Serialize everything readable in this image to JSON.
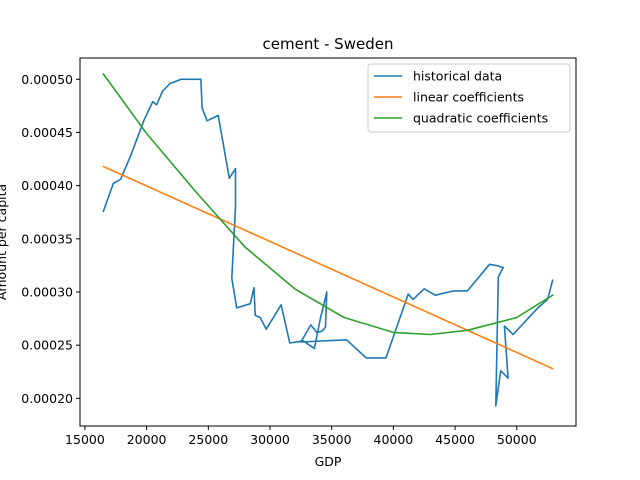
{
  "chart_data": {
    "type": "line",
    "title": "cement - Sweden",
    "xlabel": "GDP",
    "ylabel": "Amount per capita",
    "xlim": [
      14600,
      54800
    ],
    "ylim": [
      0.000174,
      0.00052
    ],
    "xticks": [
      15000,
      20000,
      25000,
      30000,
      35000,
      40000,
      45000,
      50000
    ],
    "yticks": [
      0.0002,
      0.00025,
      0.0003,
      0.00035,
      0.0004,
      0.00045,
      0.0005
    ],
    "xtick_labels": [
      "15000",
      "20000",
      "25000",
      "30000",
      "35000",
      "40000",
      "45000",
      "50000"
    ],
    "ytick_labels": [
      "0.00020",
      "0.00025",
      "0.00030",
      "0.00035",
      "0.00040",
      "0.00045",
      "0.00050"
    ],
    "legend_position": "top-right",
    "series": [
      {
        "name": "historical data",
        "color": "#1f77b4",
        "points": [
          [
            16500,
            0.000376
          ],
          [
            17300,
            0.000402
          ],
          [
            17900,
            0.000406
          ],
          [
            18700,
            0.000428
          ],
          [
            19800,
            0.000462
          ],
          [
            20500,
            0.000479
          ],
          [
            20800,
            0.000476
          ],
          [
            21300,
            0.000489
          ],
          [
            21900,
            0.000496
          ],
          [
            22800,
            0.0005
          ],
          [
            24400,
            0.0005
          ],
          [
            24500,
            0.000473
          ],
          [
            24900,
            0.000461
          ],
          [
            25800,
            0.000466
          ],
          [
            26700,
            0.000407
          ],
          [
            27200,
            0.000416
          ],
          [
            27200,
            0.00038
          ],
          [
            26900,
            0.000313
          ],
          [
            27300,
            0.000285
          ],
          [
            28400,
            0.000289
          ],
          [
            28700,
            0.000304
          ],
          [
            28800,
            0.000278
          ],
          [
            29200,
            0.000276
          ],
          [
            29700,
            0.000265
          ],
          [
            30900,
            0.000288
          ],
          [
            31600,
            0.000252
          ],
          [
            32700,
            0.000254
          ],
          [
            33600,
            0.000247
          ],
          [
            34100,
            0.000276
          ],
          [
            34600,
            0.0003
          ],
          [
            34500,
            0.000267
          ],
          [
            34200,
            0.000263
          ],
          [
            33800,
            0.000262
          ],
          [
            33300,
            0.000269
          ],
          [
            32500,
            0.000253
          ],
          [
            36200,
            0.000255
          ],
          [
            37800,
            0.000238
          ],
          [
            39400,
            0.000238
          ],
          [
            41200,
            0.000298
          ],
          [
            41600,
            0.000293
          ],
          [
            42500,
            0.000303
          ],
          [
            43400,
            0.000297
          ],
          [
            44900,
            0.000301
          ],
          [
            46000,
            0.000301
          ],
          [
            47800,
            0.000326
          ],
          [
            48300,
            0.000325
          ],
          [
            48900,
            0.000323
          ],
          [
            48500,
            0.000314
          ],
          [
            48300,
            0.000193
          ],
          [
            48700,
            0.000226
          ],
          [
            49300,
            0.000219
          ],
          [
            49000,
            0.000268
          ],
          [
            49700,
            0.00026
          ],
          [
            51700,
            0.000285
          ],
          [
            52000,
            0.000288
          ],
          [
            52500,
            0.000293
          ],
          [
            52900,
            0.000311
          ]
        ]
      },
      {
        "name": "linear coefficients",
        "color": "#ff7f0e",
        "points": [
          [
            16500,
            0.000418
          ],
          [
            52900,
            0.000228
          ]
        ]
      },
      {
        "name": "quadratic coefficients",
        "color": "#2ca02c",
        "points": [
          [
            16500,
            0.000505
          ],
          [
            20000,
            0.000449
          ],
          [
            24000,
            0.000394
          ],
          [
            28000,
            0.000342
          ],
          [
            32000,
            0.000303
          ],
          [
            36000,
            0.000276
          ],
          [
            40000,
            0.000262
          ],
          [
            43000,
            0.00026
          ],
          [
            46000,
            0.000264
          ],
          [
            50000,
            0.000276
          ],
          [
            52900,
            0.000297
          ]
        ]
      }
    ]
  }
}
